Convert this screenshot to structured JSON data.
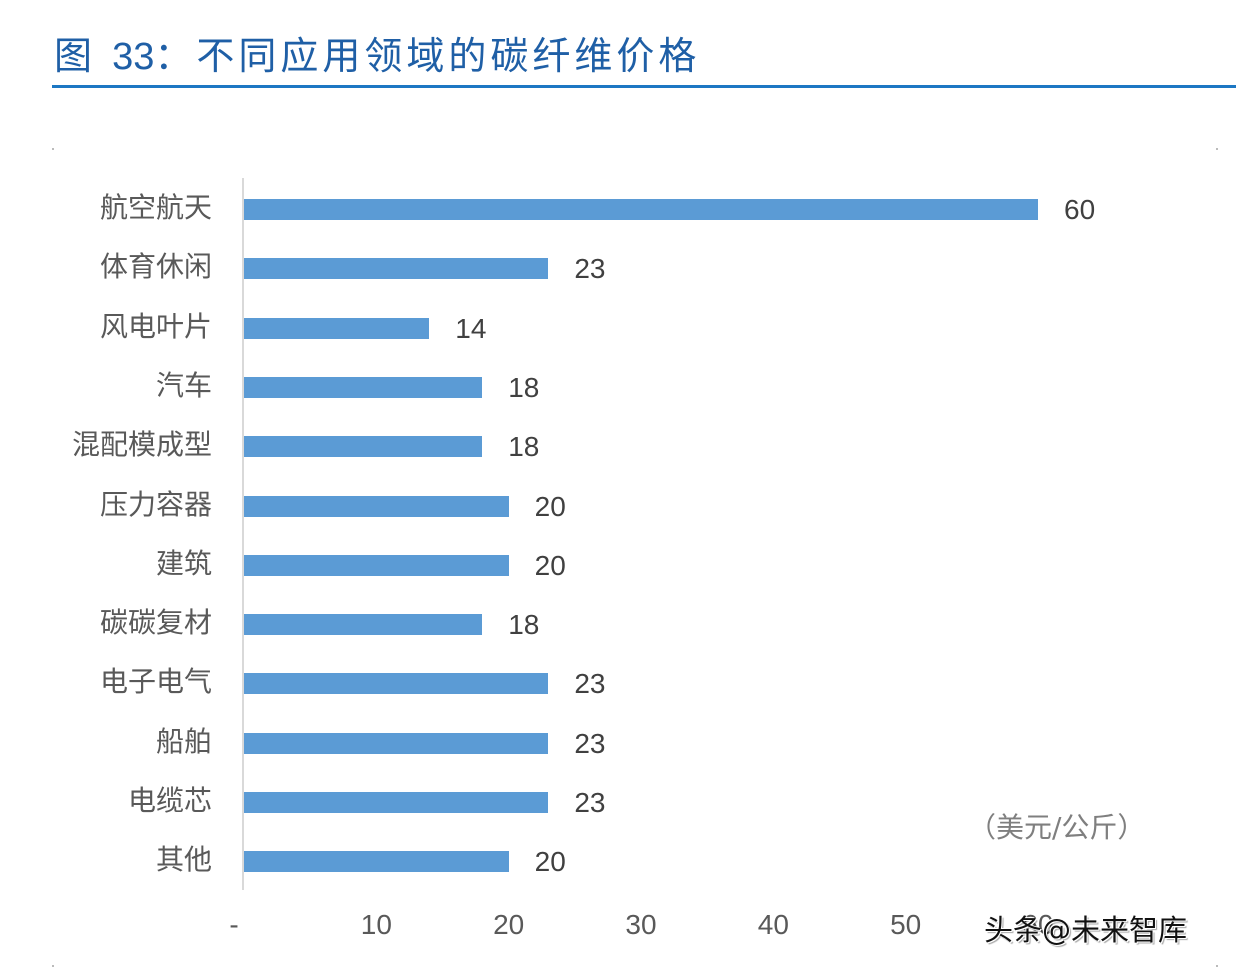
{
  "figure": {
    "title_prefix": "图 ",
    "title_number": "33",
    "title_text": "：不同应用领域的碳纤维价格",
    "accent_color": "#1f5fa6",
    "rule_color": "#1c77c3"
  },
  "unit_label": "（美元/公斤）",
  "watermark": "头条@未来智库",
  "chart_data": {
    "type": "bar",
    "orientation": "horizontal",
    "title": "图 33：不同应用领域的碳纤维价格",
    "xlabel": "",
    "ylabel": "",
    "unit": "美元/公斤",
    "categories": [
      "航空航天",
      "体育休闲",
      "风电叶片",
      "汽车",
      "混配模成型",
      "压力容器",
      "建筑",
      "碳碳复材",
      "电子电气",
      "船舶",
      "电缆芯",
      "其他"
    ],
    "values": [
      60,
      23,
      14,
      18,
      18,
      20,
      20,
      18,
      23,
      23,
      23,
      20
    ],
    "data_labels": [
      "60",
      "23",
      "14",
      "18",
      "18",
      "20",
      "20",
      "18",
      "23",
      "23",
      "23",
      "20"
    ],
    "x_ticks": [
      "-",
      "10",
      "20",
      "30",
      "40",
      "50",
      "60"
    ],
    "x_tick_values": [
      0,
      10,
      20,
      30,
      40,
      50,
      60
    ],
    "xlim": [
      0,
      60
    ],
    "grid": false,
    "legend": null,
    "bar_color": "#5b9bd5"
  }
}
